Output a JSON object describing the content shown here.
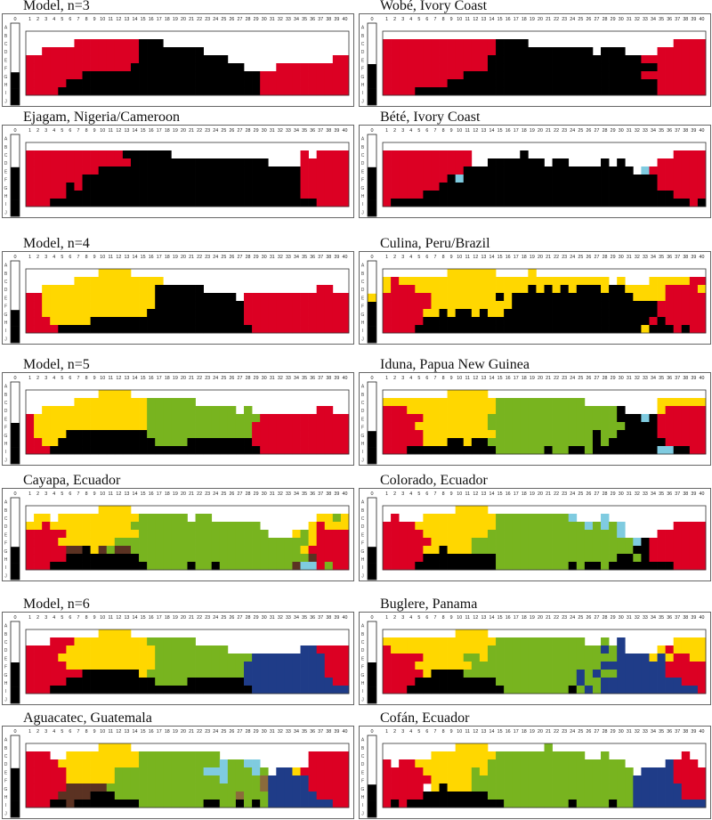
{
  "chart_data": {
    "type": "heatmap",
    "row_labels": [
      "A",
      "B",
      "C",
      "D",
      "E",
      "F",
      "G",
      "H",
      "I",
      "J"
    ],
    "achromatic_column_label": "0",
    "column_labels": [
      "1",
      "2",
      "3",
      "4",
      "5",
      "6",
      "7",
      "8",
      "9",
      "10",
      "11",
      "12",
      "13",
      "14",
      "15",
      "16",
      "17",
      "18",
      "19",
      "20",
      "21",
      "22",
      "23",
      "24",
      "25",
      "26",
      "27",
      "28",
      "29",
      "30",
      "31",
      "32",
      "33",
      "34",
      "35",
      "36",
      "37",
      "38",
      "39",
      "40"
    ],
    "colors": {
      "W": "#ffffff",
      "R": "#dc0023",
      "K": "#000000",
      "Y": "#ffd700",
      "G": "#78b41f",
      "B": "#1f3c88",
      "C": "#7fcbe0",
      "N": "#5b3222",
      "O": "#8b6b3b"
    },
    "panels": [
      {
        "title": "Model, n=3",
        "achromatic": "WWWWWWKKKK",
        "rows": [
          "WWWWWWWWWWWWWWWWWWWWWWWWWWWWWWWWWWWWWWWW",
          "WWWWWWRRRRRRRRKKKWWWWWWWWWWWWWWWWWWWWWWW",
          "WWRRRRRRRRRRRRKKKKKKKKWWWWWWWWWWWWWWWWWW",
          "RRRRRRRRRRRRRRKKKKKKKKKKKWWWWWWWWWWWWWRR",
          "RRRRRRRRRRRRRKKKKKKKKKKKKKKWWWWRRRRRRRRR",
          "RRRRRRRKKKKKKKKKKKKKKKKKKKKKKRRRRRRRRRRR",
          "RRRRRKKKKKKKKKKKKKKKKKKKKKKKKRRRRRRRRRRR",
          "RRRRKKKKKKKKKKKKKKKKKKKKKKKKKRRRRRRRRRRR"
        ]
      },
      {
        "title": "Wobé, Ivory Coast",
        "achromatic": "WWWWWKKKKK",
        "rows": [
          "WWWWWWWWWWWWWWWWWWWWWWWWWWWWWWWWWWWWWWWW",
          "RRRRRRRRRRRRRRKKKKWWWWWWWWWWWWWWWWWWRRRR",
          "RRRRRRRRRRRRRRKKKKKKKKKKKKWKKKWWWWRRRRRR",
          "RRRRRRRRRRRRRKKKKKKKKKKKKKKKKKKKRRRRRRRR",
          "RRRRRRRRRRRRRKKKKKKKKKKKKKKKKKKKKKRRRRRR",
          "RRRRRRRRRRKKKKKKKKKKKKKKKKKKKKKKRRRRRRRR",
          "RRRRRRRRKKKKKKKKKKKKKKKKKKKKKKKKKKRRRRRR",
          "RRRRKKKKKKKKKKKKKKKKKKKKKKKKKKKKKKRRRRRR"
        ]
      },
      {
        "title": "Ejagam, Nigeria/Cameroon",
        "achromatic": "WWWWKKKKKK",
        "rows": [
          "WWWWWWWWWWWWWWWWWWWWWWWWWWWWWWWWWWWWWWWW",
          "RRRRRRRRRRRRKKKKKKWWWWWWWWWWWWWWWWRWRRRR",
          "RRRRRRRRRRRRRKKKKKKKKKKKKKKKKKWWWWRRRRRR",
          "RRRRRRRRRKKKKKKKKKKKKKKKKKKKKKKKKKRRRRRR",
          "RRRRRRRKKKKKKKKKKKKKKKKKKKKKKKKKKKRRRRRR",
          "RRRRRKRKKKKKKKKKKKKKKKKKKKKKKKKKKKRRRRRR",
          "RRRRRKKKKKKKKKKKKKKKKKKKKKKKKKKKKKRRRRRR",
          "RRRKKKKKKKKKKKKKKKKKKKKKKKKKKKKKKKKKRRRR"
        ]
      },
      {
        "title": "Bété, Ivory Coast",
        "achromatic": "WWWWKKKKKK",
        "rows": [
          "WWWWWWWWWWWWWWWWWWWWWWWWWWWWWWWWWWWWWWWW",
          "RRRRRRRRRRRWWWWWWKWWWWWWWWWWWWWWWWWWRRRR",
          "RRRRRRRRRRRWWKKKKKKKWKKWWWWKWKWWWWRRRRRR",
          "RRRRRRRRRRKKKKKKKKKKKKKKKKKKKKKWCRRRRRRR",
          "RRRRRRRRKCKKKKKKKKKKKKKKKKKKKKKKKKRRRRRR",
          "RRRRRRRKKKKKKKKKKKKKKKKKKKKKKKKKKKRRRRRR",
          "RRRRRKKKKKKKKKKKKKKKKKKKKKKKKKKKKKKKRRRR",
          "RKKKKKKKKKKKKKKKKKKKKKKKKKKKKKKKKKKKKKRK"
        ]
      },
      {
        "title": "Model, n=4",
        "achromatic": "WWWWWWKKKK",
        "rows": [
          "WWWWWWWWWYYYYWWWWWWWWWWWWWWWWWWWWWWWWWWW",
          "WWWWWWYYYYYYYYYYYWWWWWWWWWWWWWWWWWWWWWWW",
          "WWYYYYYYYYYYYYYYKKKKKKWWWWWWWWWWWWWWRRWW",
          "RRYYYYYYYYYYYYYYKKKKKKKKKKWRRRRRRRRRRRRR",
          "RRYYYYYYYYYYYYYYKKKKKKKKKKKRRRRRRRRRRRRR",
          "RRYYYYYYYYYYYYYKKKKKKKKKKKKRRRRRRRRRRRRR",
          "RRRYYYYYKKKKKKKKKKKKKKKKKKKRRRRRRRRRRRRR",
          "RRRRKKKKKKKKKKKKKKKKKKKKKKKKRRRRRRRRRRRR"
        ]
      },
      {
        "title": "Culina, Peru/Brazil",
        "achromatic": "WWWWYKKKKK",
        "rows": [
          "WWWWWWWWYYYYYYWWWWYWWWWWWWWWWWWWWWWWWWWW",
          "YRYYYYYYYYYYYYYYYYYYYYYYYYYYWYWWWYYYYYRR",
          "YRRRYYYYYYYYYYYYYYKYKYKYKKKYKKYYYYYRRRRY",
          "RRRRRRYYYYYYYYKYKKKKKKKKKKKKKKKYYYYRRRRR",
          "RRRRRRYYYYYYYYYYKKKKKKKKKKKKKKKKKKRRRRRR",
          "RRRRRYYKYKKYKYYKKKKKKKKKKKKKKKKKKKRRRRRR",
          "RRRRRKKKKKKKKKKKKKKKKKKKKKKKKKKKKRKRRRRR",
          "RRRRKKKKKKKKKKKKKKKKKKKKKKKKKKKKYKKKRKRR"
        ]
      },
      {
        "title": "Model, n=5",
        "achromatic": "WWWWWKKKKK",
        "rows": [
          "WWWWWWWWWYYYYWWWWWWWWWWWWWWWWWWWWWWWWWWW",
          "WWWWWWYYYYYYYYYGGGGGGWWWWWWWWWWWWWWWWWWW",
          "WWYYYYYYYYYYYYYGGGGGGGGGGGWGWWWWWWWWRRWW",
          "RYYYYYYYYYYYYYYGGGGGGGGGGGGGGRRRRRRRRRRR",
          "RYYYYYYYYYYYYYYGGGGGGGGGGGGGRRRRRRRRRRRR",
          "RYYYYKKKKKKKKKKGGGGGGGGGGGGGRRRRRRRRRRRR",
          "RRYYKKKKKKKKKKKKGGGGKKKKKKKKRRRRRRRRRRRR",
          "RRRKKKKKKKKKKKKKKKKKKKKKKKKKKRRRRRRRRRRR"
        ]
      },
      {
        "title": "Iduna, Papua New Guinea",
        "achromatic": "WWWWWWKKKK",
        "rows": [
          "WWWWWWWWYYYYYWWWWWWWWWWWWWWWWWWWWWWWWWWW",
          "YYYYYYYYYYYYYYGGGGGGGGGGGWWWWWWWWWYYYYYY",
          "RRRYYYYYYYYYYYGGGGGGGGGGGGGGGKWWWWYRRRRR",
          "RRRRRYYYYYYYYGGGGGGGGGGGGGGGGKKKCKRRRRRR",
          "RRRRYYYYYYYYYGGGGGGGGGGGGGGGGGKKKKRRRRRR",
          "RRRRRYYYYYYYYYGGGGGGGGGGGGKGGKKKKKRRRRRR",
          "RRRRRYYYKKYKKGGGGGGGGGGGGGKGKKKKKKKRRRRR",
          "RRRKKKKKKKKKKKGGGGGGKGGKKGKKKKKKKKCCKKRR"
        ]
      },
      {
        "title": "Cayapa, Ecuador",
        "achromatic": "WWWWWWKKKK",
        "rows": [
          "WWWWWWWWWYYYYWWWWWWWWWWWWWWWWWWWWWWWWWWW",
          "WYYWYYYYYYYYYYGGGGGGWGGWWWWWWWWWWWWWYYGY",
          "YYRYYYYYYYYYYGGGGGGGGGGGGGGGGWWWWWWYRYYY",
          "RRRRRYYYYYYYYYGGGGGGGGGGGGGGGGWWWYGYRRRR",
          "RRRRYYYYYYYGGGGGGGGGGGGGGGGGGGGGGGGYRRRR",
          "RRRRRNNKYNGNNGGGGGGGGGGGGGGGGGGGGGYRRRRR",
          "RRRRRKKKKKKKKKGGGGGGGGGGGGGGGGGGGGGNRRRR",
          "RRRKKKKKKKKKKKKGGGGGKGGKGGGGGGGGGNCCRGRR"
        ]
      },
      {
        "title": "Colorado, Ecuador",
        "achromatic": "WWWWWWKKKK",
        "rows": [
          "WWWWWWWWWYYYYWWWWWWWWWWWWWWWWWWWWWWWWWWW",
          "WRWWWYYYYYYYYYGGGGGGGGGCWWWCWWWWWWWWWWWW",
          "RRRRYYYYYYYYYYGGGGGGGGGGGCGCGCWWWWWWRRRR",
          "RRRRRYYYYYYYYGGGGGGGGGGGGGGGGCWWWWRRRRRR",
          "RRRRRRYYYYYGGGGGGGGGGGGGGGGGGGGCKRRRRRRR",
          "RRRRRYYKYYYGGGGGGGGGGGGGGGGGGGGKKRRRRRRR",
          "RRRRRKKKKKKKKKGGGGGGGGGGGGGGGKKGKRRRRRRR",
          "RRRRKKKKKKKKKKGGGGGGGGGKGKKGKKKKKKKKRRRR"
        ]
      },
      {
        "title": "Model, n=6",
        "achromatic": "WWWWWKKKKK",
        "rows": [
          "WWWWWWWWWYYYYWWWWWWWWWWWWWWWWWWWWWWWWWWW",
          "WWWRRRYYYYYYYYYGGGGGGWWWWWWWWWWWWWWWWWWW",
          "RRRRRYYYYYYYYYYYGGGGGGGGGWWWWWWWWWBBRRRR",
          "RRRRYYYYYYYYYYYYGGGGGGGGGGGGBBBBBBBBBRRR",
          "RRRRRYYYYYYYYYYYGGGGGGGGGGGBBBBBBBBBBRRR",
          "RRRRRRRKKKKKKKYGGGGGGGGGGGGBBBBBBBBBBRRR",
          "RRRRRKKKKKKKKKKKGGGGKKKKKKKBBBBBBBBBBBRR",
          "RRRKKKKKKKKKKKKKKKKKKKKKKKKKBBBBBBBBBBBB"
        ]
      },
      {
        "title": "Buglere, Panama",
        "achromatic": "WWWWWKKKKK",
        "rows": [
          "WWWWWWWWWYYYYWWWWWWWWWWWWWWWWWWWWWWWWWWW",
          "YYYYYYYYYYYYYYGGGGGGGGGGGWWGWBWWWWWWYYYY",
          "RYYYYYYYYYYYYGGGGGGGGGGGGGGBGBWWWWYRYYYY",
          "RRRRRYYYYYGGYGGGGGGGGGGGGGGGGBBBBYBYRRYY",
          "RRRRYYYYYYYGGGGGGGGGGGGGGGGBBBBBBBBRRRRR",
          "RRRRRYKKKKGGGGGGGGGGGGGGBGBGGBBBBBBRRRRR",
          "RRRRKKKKKKKKKKGGGGGGGGGGBGGBBBBBBBBBBRRR",
          "RRRKKKKKKKKKKKKGGGGGGGGKGBGBBBBBBBBBBBBR"
        ]
      },
      {
        "title": "Aguacatec, Guatemala",
        "achromatic": "WWWWKKKKKK",
        "rows": [
          "WWWWWWWWWYYYYWWWWWWWWWWWWWWWWWWWWWWWWWWW",
          "RRRWWYYYYYYYYYGGGGGGGGGGWWWWWWWWWWWRRRRR",
          "RRRRYYYYYYYYYYGGGGGGGGGGCGGCCWWWWWWRRRRR",
          "RRRRRYYYYYYGGGGGGGGGGGCCCGGGCGWBBYRRRRRR",
          "RRRRRYYYYYYGGGGGGGGGGGGGCGGGGOBBBBBRRRRR",
          "RRRRRNNNNNGGGGGGGGGGGGGGGGGGGOBBBBBRRRRR",
          "RRRRNNNNKKKGGGGGGGGGGGGGGGOGGGBBBBBBRRRR",
          "RRRKKNKKKKKKKKGGGGGGGGKKGGKGKGBBBBBBBBRR"
        ]
      },
      {
        "title": "Cofán, Ecuador",
        "achromatic": "WWWWWWKKKK",
        "rows": [
          "WWWWWWWWWYYYYWWWWWWWGWWWWWWWWWWWWWWWWWWW",
          "WWWWWWYYYYYYYYGGGGGGGGGGGWWGWWWWWWWWWRWW",
          "RWRRYYYYYYYYYGGGGGGGGGGGGGGGGGWWWWWBRRRW",
          "RRRRRYYYYYYGYGGGGGGGGGGGGGGGGGGWBBBBRRRR",
          "RRRRRRYYYYYGGGGGGGGGGGGGGGGGGGGBBBBBRRRR",
          "RRRRRWYKYYYGGGGGGGGGGGGGGGGGGGGBBBBBBRRR",
          "RRRRRKKKKKKKKGGGGGGGGGGGGGGGGGGBBBBBBRRR",
          "RKRKKKKKKKKKKKKGGGGGGGGKGGGGKGGBBBBBBBBB"
        ]
      }
    ]
  }
}
